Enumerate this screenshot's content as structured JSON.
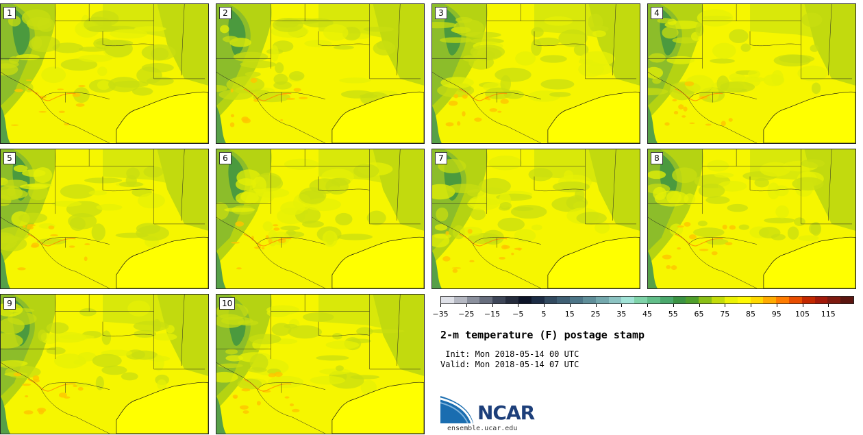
{
  "panels": [
    {
      "label": "1"
    },
    {
      "label": "2"
    },
    {
      "label": "3"
    },
    {
      "label": "4"
    },
    {
      "label": "5"
    },
    {
      "label": "6"
    },
    {
      "label": "7"
    },
    {
      "label": "8"
    },
    {
      "label": "9"
    },
    {
      "label": "10"
    }
  ],
  "colorbar": {
    "colors": [
      "#dfe1e8",
      "#b5b8c2",
      "#8b909d",
      "#676d7d",
      "#3e4658",
      "#252c3d",
      "#0d1428",
      "#1c2c45",
      "#324a60",
      "#3f5f74",
      "#4c7587",
      "#5f8e99",
      "#74a8ad",
      "#8cc3c2",
      "#a1e3d7",
      "#7fd3a9",
      "#62be89",
      "#4aa86c",
      "#3b9343",
      "#4f9f2b",
      "#8abf15",
      "#c3dc0a",
      "#ecf205",
      "#fff904",
      "#ffd900",
      "#ffab00",
      "#ff7c00",
      "#e84d00",
      "#c32800",
      "#a31a0a",
      "#7e1a10",
      "#5b1510"
    ],
    "tick_labels": [
      "−35",
      "−25",
      "−15",
      "−5",
      "5",
      "15",
      "25",
      "35",
      "45",
      "55",
      "65",
      "75",
      "85",
      "95",
      "105",
      "115"
    ]
  },
  "title": "2-m temperature (F) postage stamp",
  "init_line": " Init: Mon 2018-05-14 00 UTC",
  "valid_line": "Valid: Mon 2018-05-14 07 UTC",
  "logo_text": "NCAR",
  "url": "ensemble.ucar.edu"
}
